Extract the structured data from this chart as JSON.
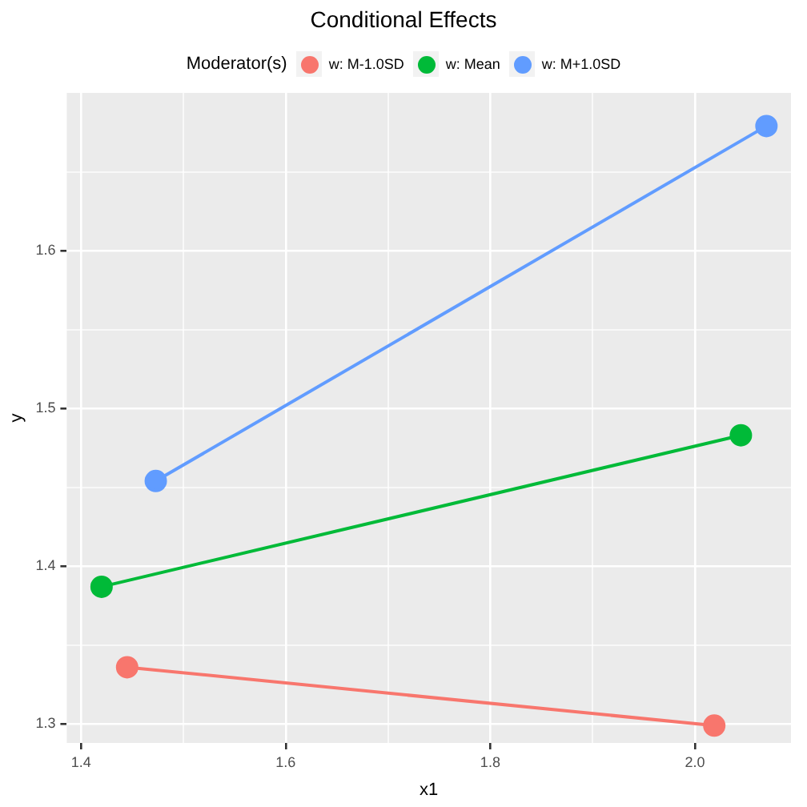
{
  "chart_data": {
    "type": "line",
    "title": "Conditional Effects",
    "xlabel": "x1",
    "ylabel": "y",
    "legend_title": "Moderator(s)",
    "legend": "top",
    "grid": true,
    "marker": "circle",
    "line_style": "solid",
    "xlim": [
      1.386,
      2.094
    ],
    "xticks": [
      1.4,
      {
        "value": 1.5,
        "label": null
      },
      1.6,
      {
        "value": 1.7,
        "label": null
      },
      1.8,
      {
        "value": 1.9,
        "label": null
      },
      {
        "value": 2,
        "label": "2.0"
      }
    ],
    "ylim": [
      1.288,
      1.7
    ],
    "yticks": [
      1.3,
      {
        "value": 1.35,
        "label": null
      },
      1.4,
      {
        "value": 1.45,
        "label": null
      },
      1.5,
      {
        "value": 1.55,
        "label": null
      },
      1.6,
      {
        "value": 1.65,
        "label": null
      }
    ],
    "series": [
      {
        "name": "w: M-1.0SD",
        "color": "#f8766d",
        "x": [
          1.445,
          2.019
        ],
        "values": [
          1.336,
          1.299
        ]
      },
      {
        "name": "w: Mean",
        "color": "#00ba38",
        "x": [
          1.42,
          2.045
        ],
        "values": [
          1.387,
          1.483
        ]
      },
      {
        "name": "w: M+1.0SD",
        "color": "#619cff",
        "x": [
          1.473,
          2.07
        ],
        "values": [
          1.454,
          1.679
        ]
      }
    ]
  }
}
